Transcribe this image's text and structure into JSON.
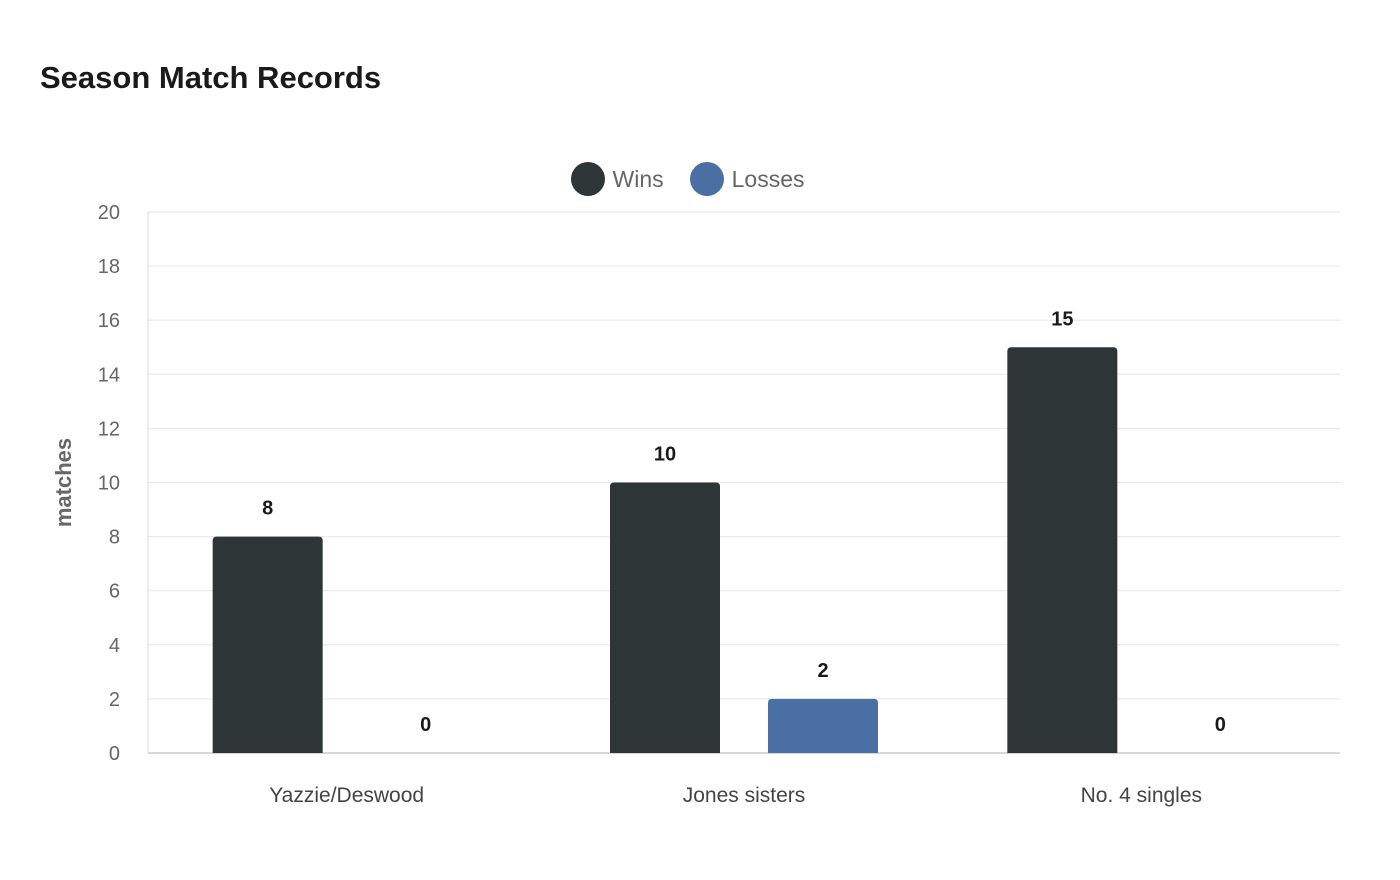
{
  "chart_data": {
    "type": "bar",
    "title": "Season Match Records",
    "ylabel": "matches",
    "xlabel": "",
    "categories": [
      "Yazzie/Deswood",
      "Jones sisters",
      "No. 4 singles"
    ],
    "series": [
      {
        "name": "Wins",
        "color": "#2e3537",
        "values": [
          8,
          10,
          15
        ]
      },
      {
        "name": "Losses",
        "color": "#4a6fa5",
        "values": [
          0,
          2,
          0
        ]
      }
    ],
    "ylim": [
      0,
      20
    ],
    "yticks": [
      0,
      2,
      4,
      6,
      8,
      10,
      12,
      14,
      16,
      18,
      20
    ],
    "grid": true,
    "legend_position": "top-center",
    "data_labels": true
  }
}
